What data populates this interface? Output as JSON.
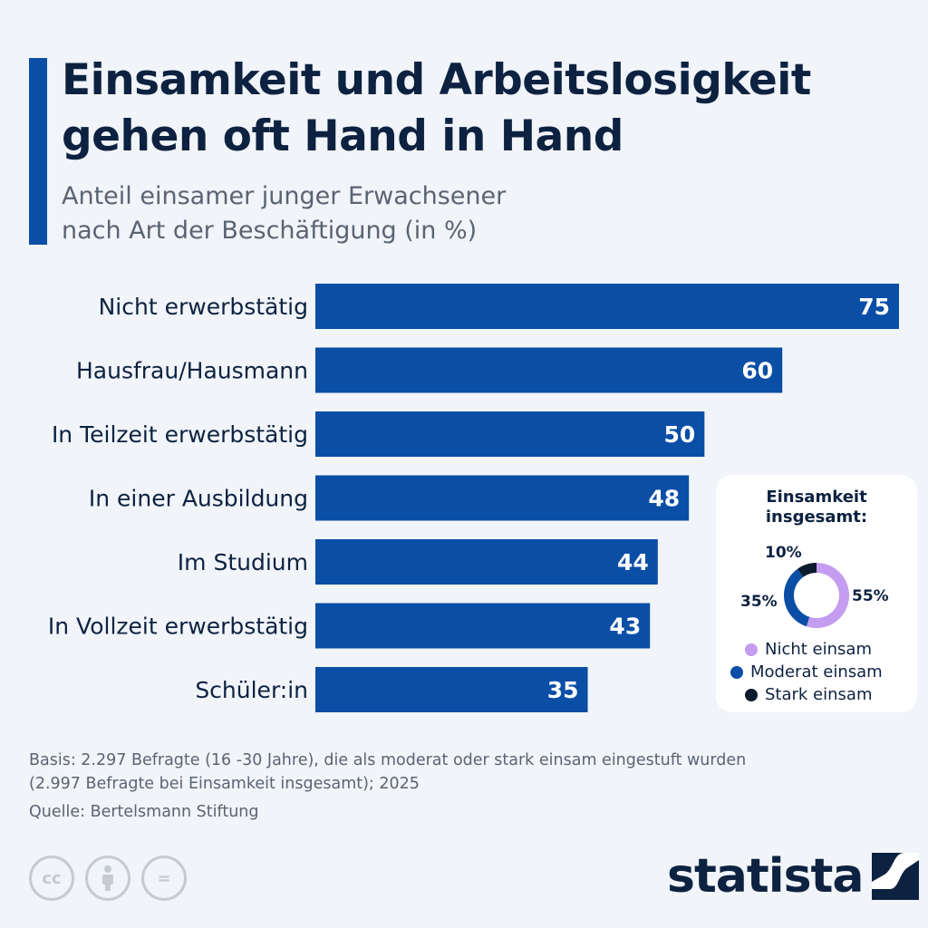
{
  "header": {
    "title": "Einsamkeit und Arbeitslosigkeit gehen oft Hand in Hand",
    "subtitle_line1": "Anteil einsamer junger Erwachsener",
    "subtitle_line2": "nach Art der Beschäftigung (in %)"
  },
  "colors": {
    "bar": "#0a4ea6",
    "accent": "#0a4ea6",
    "donut_nicht": "#c49cf0",
    "donut_moderat": "#0a4ea6",
    "donut_stark": "#0d1b2e"
  },
  "chart_data": [
    {
      "type": "bar",
      "orientation": "horizontal",
      "categories": [
        "Nicht erwerbstätig",
        "Hausfrau/Hausmann",
        "In Teilzeit erwerbstätig",
        "In einer Ausbildung",
        "Im Studium",
        "In Vollzeit erwerbstätig",
        "Schüler:in"
      ],
      "values": [
        75,
        60,
        50,
        48,
        44,
        43,
        35
      ],
      "value_labels": [
        "75",
        "60",
        "50",
        "48",
        "44",
        "43",
        "35"
      ],
      "xlim": [
        0,
        75
      ],
      "grid": false
    },
    {
      "type": "pie",
      "style": "donut",
      "title": "Einsamkeit insgesamt:",
      "slices": [
        {
          "name": "Nicht einsam",
          "value": 55,
          "label": "55%"
        },
        {
          "name": "Moderat einsam",
          "value": 35,
          "label": "35%"
        },
        {
          "name": "Stark einsam",
          "value": 10,
          "label": "10%"
        }
      ],
      "legend_placement": "bottom"
    }
  ],
  "footer": {
    "basis_line1": "Basis: 2.297 Befragte (16 -30 Jahre), die als moderat oder stark einsam eingestuft wurden",
    "basis_line2": "(2.997 Befragte bei Einsamkeit insgesamt); 2025",
    "source": "Quelle: Bertelsmann Stiftung",
    "cc_label": "cc",
    "equals_label": "=",
    "brand": "statista"
  }
}
